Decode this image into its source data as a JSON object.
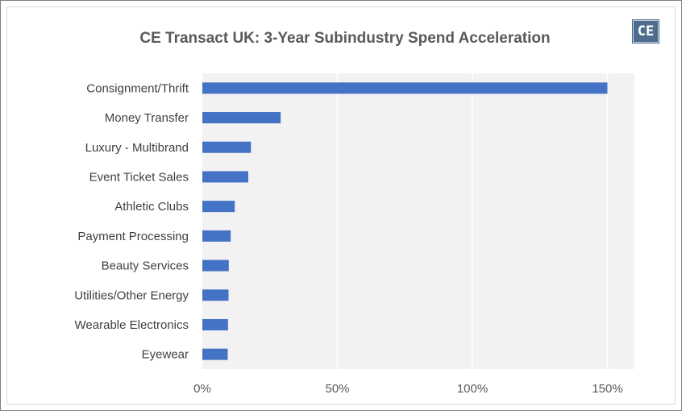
{
  "chart_data": {
    "type": "bar",
    "orientation": "horizontal",
    "title": "CE Transact UK: 3-Year Subindustry Spend Acceleration",
    "logo_text": "CE",
    "categories": [
      "Consignment/Thrift",
      "Money Transfer",
      "Luxury - Multibrand",
      "Event Ticket Sales",
      "Athletic Clubs",
      "Payment Processing",
      "Beauty Services",
      "Utilities/Other Energy",
      "Wearable Electronics",
      "Eyewear"
    ],
    "values": [
      150,
      29,
      18,
      17,
      12,
      10.5,
      9.8,
      9.7,
      9.5,
      9.4
    ],
    "xlim": [
      0,
      160
    ],
    "x_ticks": [
      0,
      50,
      100,
      150
    ],
    "x_tick_labels": [
      "0%",
      "50%",
      "100%",
      "150%"
    ],
    "xlabel": "",
    "ylabel": "",
    "grid": "vertical",
    "legend": "none",
    "colors": {
      "bar": "#4472c4",
      "plot_background": "#f2f2f2",
      "gridline": "#ffffff",
      "title": "#595959",
      "logo": "#4e6d8e"
    }
  }
}
